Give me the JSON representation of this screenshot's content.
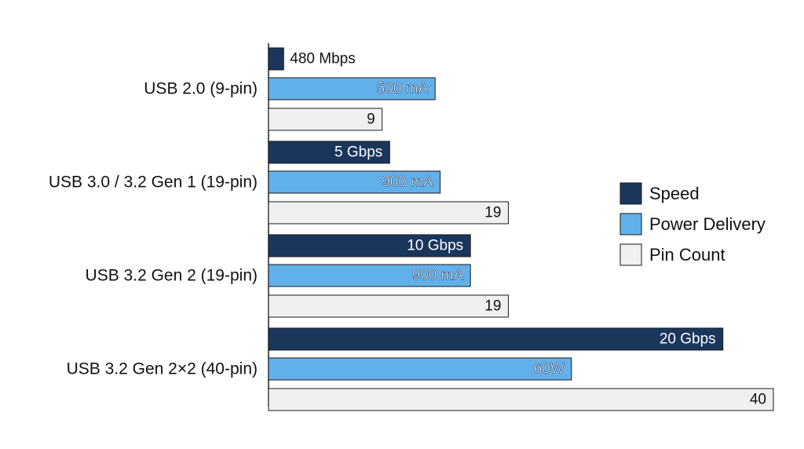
{
  "chart_data": {
    "type": "bar",
    "orientation": "horizontal",
    "title": "",
    "xlabel": "",
    "ylabel": "",
    "grid": false,
    "legend_position": "right",
    "categories": [
      "USB 2.0 (9-pin)",
      "USB 3.0 / 3.2 Gen 1 (19-pin)",
      "USB 3.2 Gen 2 (19-pin)",
      "USB 3.2 Gen 2×2 (40-pin)"
    ],
    "series": [
      {
        "name": "Speed",
        "color": "#1b365d",
        "label_color": "#ffffff",
        "relative_values": [
          0.03,
          0.24,
          0.4,
          0.9
        ],
        "labels": [
          "480 Mbps",
          "5 Gbps",
          "10 Gbps",
          "20 Gbps"
        ]
      },
      {
        "name": "Power Delivery",
        "color": "#62b0ea",
        "label_color": "#ffffff",
        "relative_values": [
          0.33,
          0.34,
          0.4,
          0.6
        ],
        "labels": [
          "500 mA",
          "900 mA",
          "900 mA",
          "60W"
        ]
      },
      {
        "name": "Pin Count",
        "color": "#f0f0f0",
        "label_color": "#111111",
        "values": [
          9,
          19,
          19,
          40
        ],
        "labels": [
          "9",
          "19",
          "19",
          "40"
        ]
      }
    ]
  }
}
